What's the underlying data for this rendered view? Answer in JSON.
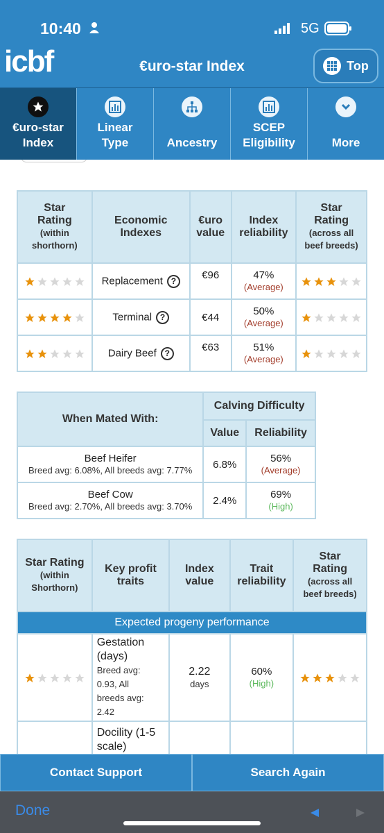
{
  "status_bar": {
    "time": "10:40",
    "network": "5G"
  },
  "header": {
    "logo": "icbf",
    "title": "€uro-star Index",
    "top_label": "Top"
  },
  "tabs": [
    {
      "label1": "€uro-star",
      "label2": "Index"
    },
    {
      "label1": "Linear",
      "label2": "Type"
    },
    {
      "label1": "",
      "label2": "Ancestry"
    },
    {
      "label1": "SCEP",
      "label2": "Eligibility"
    },
    {
      "label1": "",
      "label2": "More"
    }
  ],
  "econ_table": {
    "headers": {
      "h1": "Star",
      "h1b": "Rating",
      "h1c": "(within",
      "h1d": "shorthorn)",
      "h2": "Economic",
      "h2b": "Indexes",
      "h3": "€uro",
      "h3b": "value",
      "h4": "Index",
      "h4b": "reliability",
      "h5": "Star",
      "h5b": "Rating",
      "h5c": "(across all",
      "h5d": "beef breeds)"
    },
    "rows": [
      {
        "name": "Replacement",
        "value": "€96",
        "rel": "47%",
        "rel_label": "(Average)",
        "stars_within": 1,
        "stars_across": 3
      },
      {
        "name": "Terminal",
        "value": "€44",
        "rel": "50%",
        "rel_label": "(Average)",
        "stars_within": 4,
        "stars_across": 1
      },
      {
        "name": "Dairy Beef",
        "value": "€63",
        "rel": "51%",
        "rel_label": "(Average)",
        "stars_within": 2,
        "stars_across": 1
      }
    ]
  },
  "calving_table": {
    "mated_header": "When Mated With:",
    "group_header": "Calving Difficulty",
    "value_header": "Value",
    "rel_header": "Reliability",
    "rows": [
      {
        "name": "Beef Heifer",
        "note": "Breed avg: 6.08%, All breeds avg: 7.77%",
        "value": "6.8%",
        "rel": "56%",
        "rel_label": "(Average)"
      },
      {
        "name": "Beef Cow",
        "note": "Breed avg: 2.70%, All breeds avg: 3.70%",
        "value": "2.4%",
        "rel": "69%",
        "rel_label": "(High)"
      }
    ]
  },
  "traits_table": {
    "headers": {
      "h1": "Star Rating",
      "h1b": "(within",
      "h1c": "Shorthorn)",
      "h2": "Key profit",
      "h2b": "traits",
      "h3": "Index",
      "h3b": "value",
      "h4": "Trait",
      "h4b": "reliability",
      "h5": "Star",
      "h5b": "Rating",
      "h5c": "(across all",
      "h5d": "beef breeds)"
    },
    "band": "Expected progeny performance",
    "rows": [
      {
        "t1": "Gestation",
        "t2": "(days)",
        "n1": "Breed avg:",
        "n2": "0.93, All",
        "n3": "breeds avg:",
        "n4": "2.42",
        "value": "2.22",
        "unit": "days",
        "rel": "60%",
        "rel_label": "(High)",
        "stars_within": 1,
        "stars_across": 3
      },
      {
        "t1": "Docility (1-5",
        "t2": "scale)"
      }
    ]
  },
  "bottom": {
    "contact": "Contact Support",
    "search": "Search Again"
  },
  "browser": {
    "done": "Done"
  },
  "colors": {
    "primary": "#2f86c4",
    "star_on": "#e8920c",
    "star_off": "#d7d7d7",
    "average": "#a23c2a",
    "high": "#5bb85b"
  }
}
